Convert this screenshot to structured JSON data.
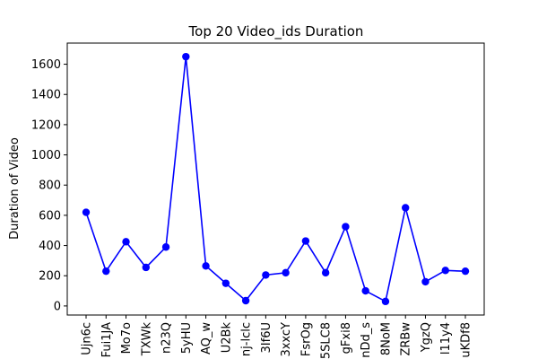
{
  "chart_data": {
    "type": "line",
    "title": "Top 20 Video_ids Duration",
    "xlabel": "",
    "ylabel": "Duration of Video",
    "categories": [
      "Ujn6c",
      "Fui1JA",
      "Mo7o",
      "TXWk",
      "n23Q",
      "5yHU",
      "AQ_w",
      "U2Bk",
      "nj-lclc",
      "3If6U",
      "3xxcY",
      "FsrOg",
      "5SLC8",
      "gFxi8",
      "nDd_s",
      "8NoM",
      "ZRBw",
      "YgzQ",
      "l11y4",
      "uKDf8"
    ],
    "values": [
      620,
      230,
      425,
      255,
      390,
      1650,
      265,
      150,
      35,
      205,
      220,
      430,
      220,
      525,
      100,
      30,
      650,
      160,
      235,
      230
    ],
    "ylim": [
      -60,
      1740
    ],
    "yticks": [
      0,
      200,
      400,
      600,
      800,
      1000,
      1200,
      1400,
      1600
    ],
    "grid": false,
    "color": "#0000ff",
    "marker": "circle"
  }
}
